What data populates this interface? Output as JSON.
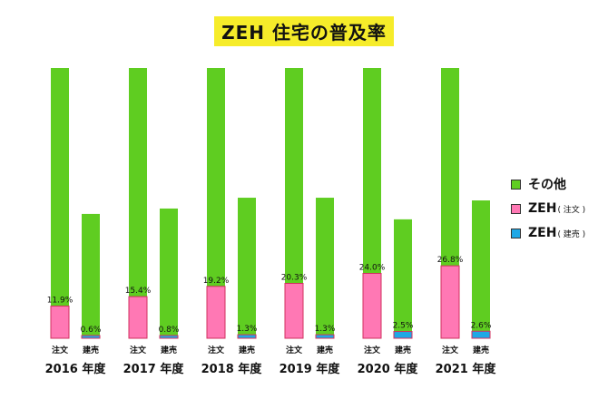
{
  "title": "ZEH 住宅の普及率",
  "legend": [
    {
      "label": "その他",
      "note": "",
      "color": "#5fcd21"
    },
    {
      "label": "ZEH",
      "note": "( 注文 )",
      "color": "#ff78b4"
    },
    {
      "label": "ZEH",
      "note": "( 建売 )",
      "color": "#1fa8e6"
    }
  ],
  "chart_data": {
    "type": "bar",
    "stacked": true,
    "categories": [
      "2016 年度",
      "2017 年度",
      "2018 年度",
      "2019 年度",
      "2020 年度",
      "2021 年度"
    ],
    "subcategories": [
      "注文",
      "建売"
    ],
    "series": [
      {
        "name": "ZEH ( 注文 )",
        "color": "#ff78b4",
        "values": [
          11.9,
          15.4,
          19.2,
          20.3,
          24.0,
          26.8
        ],
        "labels": [
          "11.9%",
          "15.4%",
          "19.2%",
          "20.3%",
          "24.0%",
          "26.8%"
        ]
      },
      {
        "name": "ZEH ( 建売 )",
        "color": "#1fa8e6",
        "values": [
          0.6,
          0.8,
          1.3,
          1.3,
          2.5,
          2.6
        ],
        "labels": [
          "0.6%",
          "0.8%",
          "1.3%",
          "1.3%",
          "2.5%",
          "2.6%"
        ]
      }
    ],
    "other_color": "#5fcd21",
    "order_totals": [
      100,
      100,
      100,
      100,
      100,
      100
    ],
    "built_totals": [
      46,
      48,
      52,
      52,
      44,
      51
    ],
    "years": [
      "2016",
      "2017",
      "2018",
      "2019",
      "2020",
      "2021"
    ],
    "year_suffix": "年度",
    "ylim": [
      0,
      100
    ],
    "grid": false,
    "legend_position": "right"
  }
}
